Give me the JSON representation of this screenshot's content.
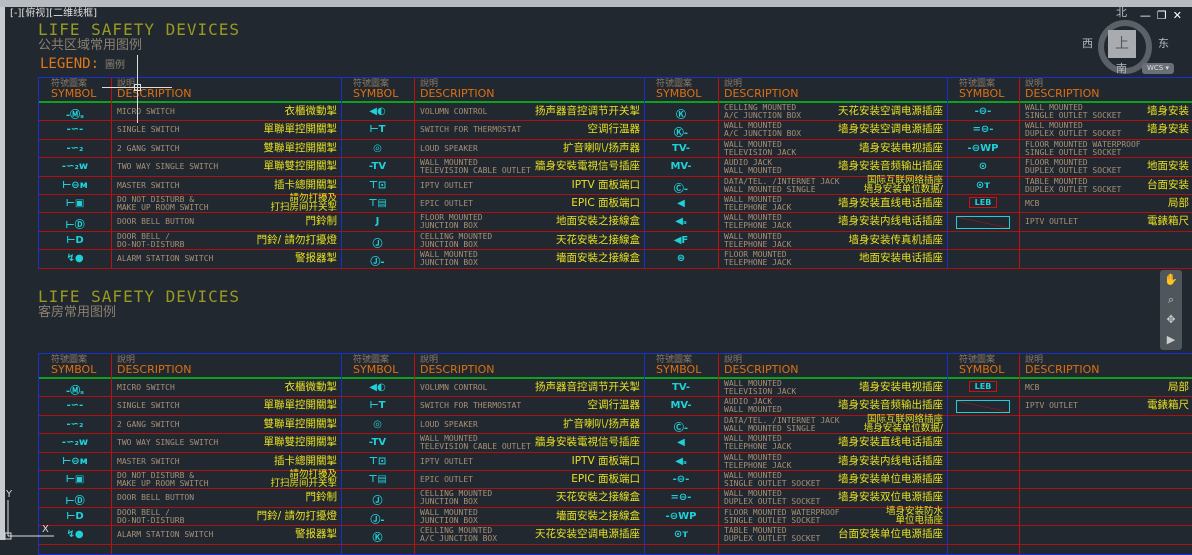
{
  "viewport_label": "[-][俯视][二维线框]",
  "window_controls": {
    "minimize": "—",
    "restore": "❐",
    "close": "✕"
  },
  "viewcube": {
    "north": "北",
    "south": "南",
    "east": "东",
    "west": "西",
    "face": "上",
    "wcs": "WCS ▾"
  },
  "nav_icons": [
    "pan-icon",
    "zoom-icon",
    "orbit-icon",
    "showmotion-icon"
  ],
  "ucs": {
    "x": "X",
    "y": "Y"
  },
  "header": {
    "sym_cn": "符號圖案",
    "sym_en": "SYMBOL",
    "desc_cn": "說明",
    "desc_en": "DESCRIPTION"
  },
  "colors": {
    "background": "#212830",
    "symbol": "#20d0d8",
    "chinese_text": "#e8e020",
    "header_en": "#e07010",
    "row_line": "#b01010",
    "frame": "#1830d0",
    "header_line": "#10a020"
  },
  "tables": [
    {
      "title": "LIFE SAFETY DEVICES",
      "subtitle": "公共区域常用图例",
      "legend": "LEGEND:",
      "legend_cn": "圖例",
      "groups": [
        [
          {
            "icon": "micro-switch",
            "desc": [
              "MICRO SWITCH"
            ],
            "cn": "衣櫃微動掣"
          },
          {
            "icon": "single-switch",
            "desc": [
              "SINGLE SWITCH"
            ],
            "cn": "單聯單控開關掣"
          },
          {
            "icon": "two-gang-switch",
            "desc": [
              "2 GANG SWITCH"
            ],
            "cn": "雙聯單控開關掣"
          },
          {
            "icon": "two-way-switch",
            "desc": [
              "TWO WAY SINGLE SWITCH"
            ],
            "cn": "單聯雙控開關掣"
          },
          {
            "icon": "master-switch",
            "desc": [
              "MASTER SWITCH"
            ],
            "cn": "插卡總開關掣"
          },
          {
            "icon": "dnd-switch",
            "desc": [
              "DO NOT DISTURB &",
              "MAKE UP  ROOM SWITCH"
            ],
            "cn": "請勿打擾及\n打扫房间开关掣"
          },
          {
            "icon": "door-bell-button",
            "desc": [
              "DOOR BELL BUTTON"
            ],
            "cn": "門鈴制"
          },
          {
            "icon": "door-bell",
            "desc": [
              "DOOR BELL /",
              "DO-NOT-DISTURB"
            ],
            "cn": "門鈴/ 請勿打擾燈"
          },
          {
            "icon": "alarm-station",
            "desc": [
              "ALARM STATION SWITCH"
            ],
            "cn": "警报器掣"
          }
        ],
        [
          {
            "icon": "volume-control",
            "desc": [
              "VOLUMN CONTROL"
            ],
            "cn": "扬声器音控调节开关掣"
          },
          {
            "icon": "thermostat",
            "desc": [
              "SWITCH FOR THERMOSTAT"
            ],
            "cn": "空调行温器"
          },
          {
            "icon": "loud-speaker",
            "desc": [
              "LOUD SPEAKER"
            ],
            "cn": "扩音喇叭/扬声器"
          },
          {
            "icon": "tv-cable-outlet",
            "desc": [
              "WALL MOUNTED",
              "TELEVISION CABLE OUTLET"
            ],
            "cn": "牆身安裝電視信号插座"
          },
          {
            "icon": "iptv-outlet",
            "desc": [
              "IPTV OUTLET"
            ],
            "cn": "IPTV 面板端口"
          },
          {
            "icon": "epic-outlet",
            "desc": [
              "EPIC OUTLET"
            ],
            "cn": "EPIC 面板端口"
          },
          {
            "icon": "floor-junction-box",
            "desc": [
              "FLOOR MOUNTED",
              "JUNCTION BOX"
            ],
            "cn": "地面安裝之接線盒"
          },
          {
            "icon": "ceiling-junction-box",
            "desc": [
              "CELLING MOUNTED",
              "JUNCTION BOX"
            ],
            "cn": "天花安裝之接線盒"
          },
          {
            "icon": "wall-junction-box",
            "desc": [
              "WALL  MOUNTED",
              "JUNCTION BOX"
            ],
            "cn": "墻面安裝之接線盒"
          }
        ],
        [
          {
            "icon": "ceiling-ac-box",
            "desc": [
              "CELLING MOUNTED",
              "A/C JUNCTION BOX"
            ],
            "cn": "天花安装空调电源插座"
          },
          {
            "icon": "wall-ac-box",
            "desc": [
              "WALL MOUNTED",
              "A/C JUNCTION BOX"
            ],
            "cn": "墙身安装空调电源插座"
          },
          {
            "icon": "tv-jack",
            "desc": [
              "WALL MOUNTED",
              "TELEVISION JACK"
            ],
            "cn": "墙身安装电视插座"
          },
          {
            "icon": "audio-jack",
            "desc": [
              "AUDIO JACK",
              "WALL MOUNTED"
            ],
            "cn": "墙身安装音频输出插座"
          },
          {
            "icon": "data-jack",
            "desc": [
              "DATA/TEL. /INTERNET JACK",
              "WALL MOUNTED SINGLE"
            ],
            "cn": "国际互联网络插座\n墙身安装单位数据/"
          },
          {
            "icon": "telephone-jack",
            "desc": [
              "WALL MOUNTED",
              "TELEPHONE JACK"
            ],
            "cn": "墙身安装直线电话插座"
          },
          {
            "icon": "internal-telephone-jack",
            "desc": [
              "WALL MOUNTED",
              "TELEPHONE JACK"
            ],
            "cn": "墙身安装内线电话插座"
          },
          {
            "icon": "fax-jack",
            "desc": [
              "WALL MOUNTED",
              "TELEPHONE JACK"
            ],
            "cn": "墙身安装传真机插座"
          },
          {
            "icon": "floor-telephone-jack",
            "desc": [
              "FLOOR MOUNTED",
              "TELEPHONE JACK"
            ],
            "cn": "地面安装电话插座"
          }
        ],
        [
          {
            "icon": "single-socket",
            "desc": [
              "WALL MOUNTED",
              "SINGLE  OUTLET SOCKET"
            ],
            "cn": "墙身安装"
          },
          {
            "icon": "duplex-socket",
            "desc": [
              "WALL MOUNTED",
              "DUPLEX  OUTLET SOCKET"
            ],
            "cn": "墙身安装"
          },
          {
            "icon": "waterproof-socket",
            "desc": [
              "FLOOR MOUNTED WATERPROOF",
              "SINGLE OUTLET SOCKET"
            ],
            "cn": ""
          },
          {
            "icon": "floor-duplex-socket",
            "desc": [
              "FLOOR MOUNTED",
              "DUPLEX  OUTLET SOCKET"
            ],
            "cn": "地面安装"
          },
          {
            "icon": "table-duplex-socket",
            "desc": [
              "TABLE MOUNTED",
              "DUPLEX  OUTLET SOCKET"
            ],
            "cn": "台面安装"
          },
          {
            "icon": "mcb",
            "desc": [
              "MCB"
            ],
            "cn": "局部"
          },
          {
            "icon": "iptv-box",
            "desc": [
              "IPTV OUTLET"
            ],
            "cn": "電錶箱尺"
          },
          {
            "icon": "",
            "desc": [],
            "cn": ""
          },
          {
            "icon": "",
            "desc": [],
            "cn": ""
          }
        ]
      ]
    },
    {
      "title": "LIFE SAFETY DEVICES",
      "subtitle": "客房常用图例",
      "groups": [
        [
          {
            "icon": "micro-switch",
            "desc": [
              "MICRO SWITCH"
            ],
            "cn": "衣櫃微動掣"
          },
          {
            "icon": "single-switch",
            "desc": [
              "SINGLE SWITCH"
            ],
            "cn": "單聯單控開關掣"
          },
          {
            "icon": "two-gang-switch",
            "desc": [
              "2 GANG SWITCH"
            ],
            "cn": "雙聯單控開關掣"
          },
          {
            "icon": "two-way-switch",
            "desc": [
              "TWO WAY SINGLE SWITCH"
            ],
            "cn": "單聯雙控開關掣"
          },
          {
            "icon": "master-switch",
            "desc": [
              "MASTER SWITCH"
            ],
            "cn": "插卡總開關掣"
          },
          {
            "icon": "dnd-switch",
            "desc": [
              "DO NOT DISTURB &",
              "MAKE UP  ROOM SWITCH"
            ],
            "cn": "請勿打擾及\n打扫房间开关掣"
          },
          {
            "icon": "door-bell-button",
            "desc": [
              "DOOR BELL BUTTON"
            ],
            "cn": "門鈴制"
          },
          {
            "icon": "door-bell",
            "desc": [
              "DOOR BELL /",
              "DO-NOT-DISTURB"
            ],
            "cn": "門鈴/ 請勿打擾燈"
          },
          {
            "icon": "alarm-station",
            "desc": [
              "ALARM STATION SWITCH"
            ],
            "cn": "警报器掣"
          }
        ],
        [
          {
            "icon": "volume-control",
            "desc": [
              "VOLUMN CONTROL"
            ],
            "cn": "扬声器音控调节开关掣"
          },
          {
            "icon": "thermostat",
            "desc": [
              "SWITCH FOR THERMOSTAT"
            ],
            "cn": "空调行温器"
          },
          {
            "icon": "loud-speaker",
            "desc": [
              "LOUD SPEAKER"
            ],
            "cn": "扩音喇叭/扬声器"
          },
          {
            "icon": "tv-cable-outlet",
            "desc": [
              "WALL MOUNTED",
              "TELEVISION CABLE OUTLET"
            ],
            "cn": "牆身安裝電視信号插座"
          },
          {
            "icon": "iptv-outlet",
            "desc": [
              "IPTV OUTLET"
            ],
            "cn": "IPTV 面板端口"
          },
          {
            "icon": "epic-outlet",
            "desc": [
              "EPIC OUTLET"
            ],
            "cn": "EPIC 面板端口"
          },
          {
            "icon": "ceiling-junction-box",
            "desc": [
              "CELLING MOUNTED",
              "JUNCTION BOX"
            ],
            "cn": "天花安裝之接線盒"
          },
          {
            "icon": "wall-junction-box",
            "desc": [
              "WALL  MOUNTED",
              "JUNCTION BOX"
            ],
            "cn": "墻面安裝之接線盒"
          },
          {
            "icon": "ceiling-ac-box",
            "desc": [
              "CELLING MOUNTED",
              "A/C JUNCTION BOX"
            ],
            "cn": "天花安装空调电源插座"
          }
        ],
        [
          {
            "icon": "tv-jack",
            "desc": [
              "WALL MOUNTED",
              "TELEVISION JACK"
            ],
            "cn": "墙身安装电视插座"
          },
          {
            "icon": "audio-jack",
            "desc": [
              "AUDIO JACK",
              "WALL MOUNTED"
            ],
            "cn": "墙身安装音频输出插座"
          },
          {
            "icon": "data-jack",
            "desc": [
              "DATA/TEL. /INTERNET JACK",
              "WALL MOUNTED SINGLE"
            ],
            "cn": "国际互联网络插座\n墙身安装单位数据/"
          },
          {
            "icon": "telephone-jack",
            "desc": [
              "WALL MOUNTED",
              "TELEPHONE JACK"
            ],
            "cn": "墙身安装直线电话插座"
          },
          {
            "icon": "internal-telephone-jack",
            "desc": [
              "WALL MOUNTED",
              "TELEPHONE JACK"
            ],
            "cn": "墙身安装内线电话插座"
          },
          {
            "icon": "single-socket",
            "desc": [
              "WALL MOUNTED",
              "SINGLE  OUTLET SOCKET"
            ],
            "cn": "墙身安装单位电源插座"
          },
          {
            "icon": "duplex-socket",
            "desc": [
              "WALL MOUNTED",
              "DUPLEX  OUTLET SOCKET"
            ],
            "cn": "墙身安装双位电源插座"
          },
          {
            "icon": "waterproof-socket",
            "desc": [
              "FLOOR MOUNTED WATERPROOF",
              "SINGLE OUTLET SOCKET"
            ],
            "cn": "墙身安装防水\n单位电插座"
          },
          {
            "icon": "table-duplex-socket",
            "desc": [
              "TABLE MOUNTED",
              "DUPLEX  OUTLET SOCKET"
            ],
            "cn": "台面安装单位电源插座"
          }
        ],
        [
          {
            "icon": "mcb",
            "desc": [
              "MCB"
            ],
            "cn": "局部"
          },
          {
            "icon": "iptv-box",
            "desc": [
              "IPTV OUTLET"
            ],
            "cn": "電錶箱尺"
          },
          {
            "icon": "",
            "desc": [],
            "cn": ""
          },
          {
            "icon": "",
            "desc": [],
            "cn": ""
          },
          {
            "icon": "",
            "desc": [],
            "cn": ""
          },
          {
            "icon": "",
            "desc": [],
            "cn": ""
          },
          {
            "icon": "",
            "desc": [],
            "cn": ""
          },
          {
            "icon": "",
            "desc": [],
            "cn": ""
          },
          {
            "icon": "",
            "desc": [],
            "cn": ""
          }
        ]
      ]
    }
  ]
}
